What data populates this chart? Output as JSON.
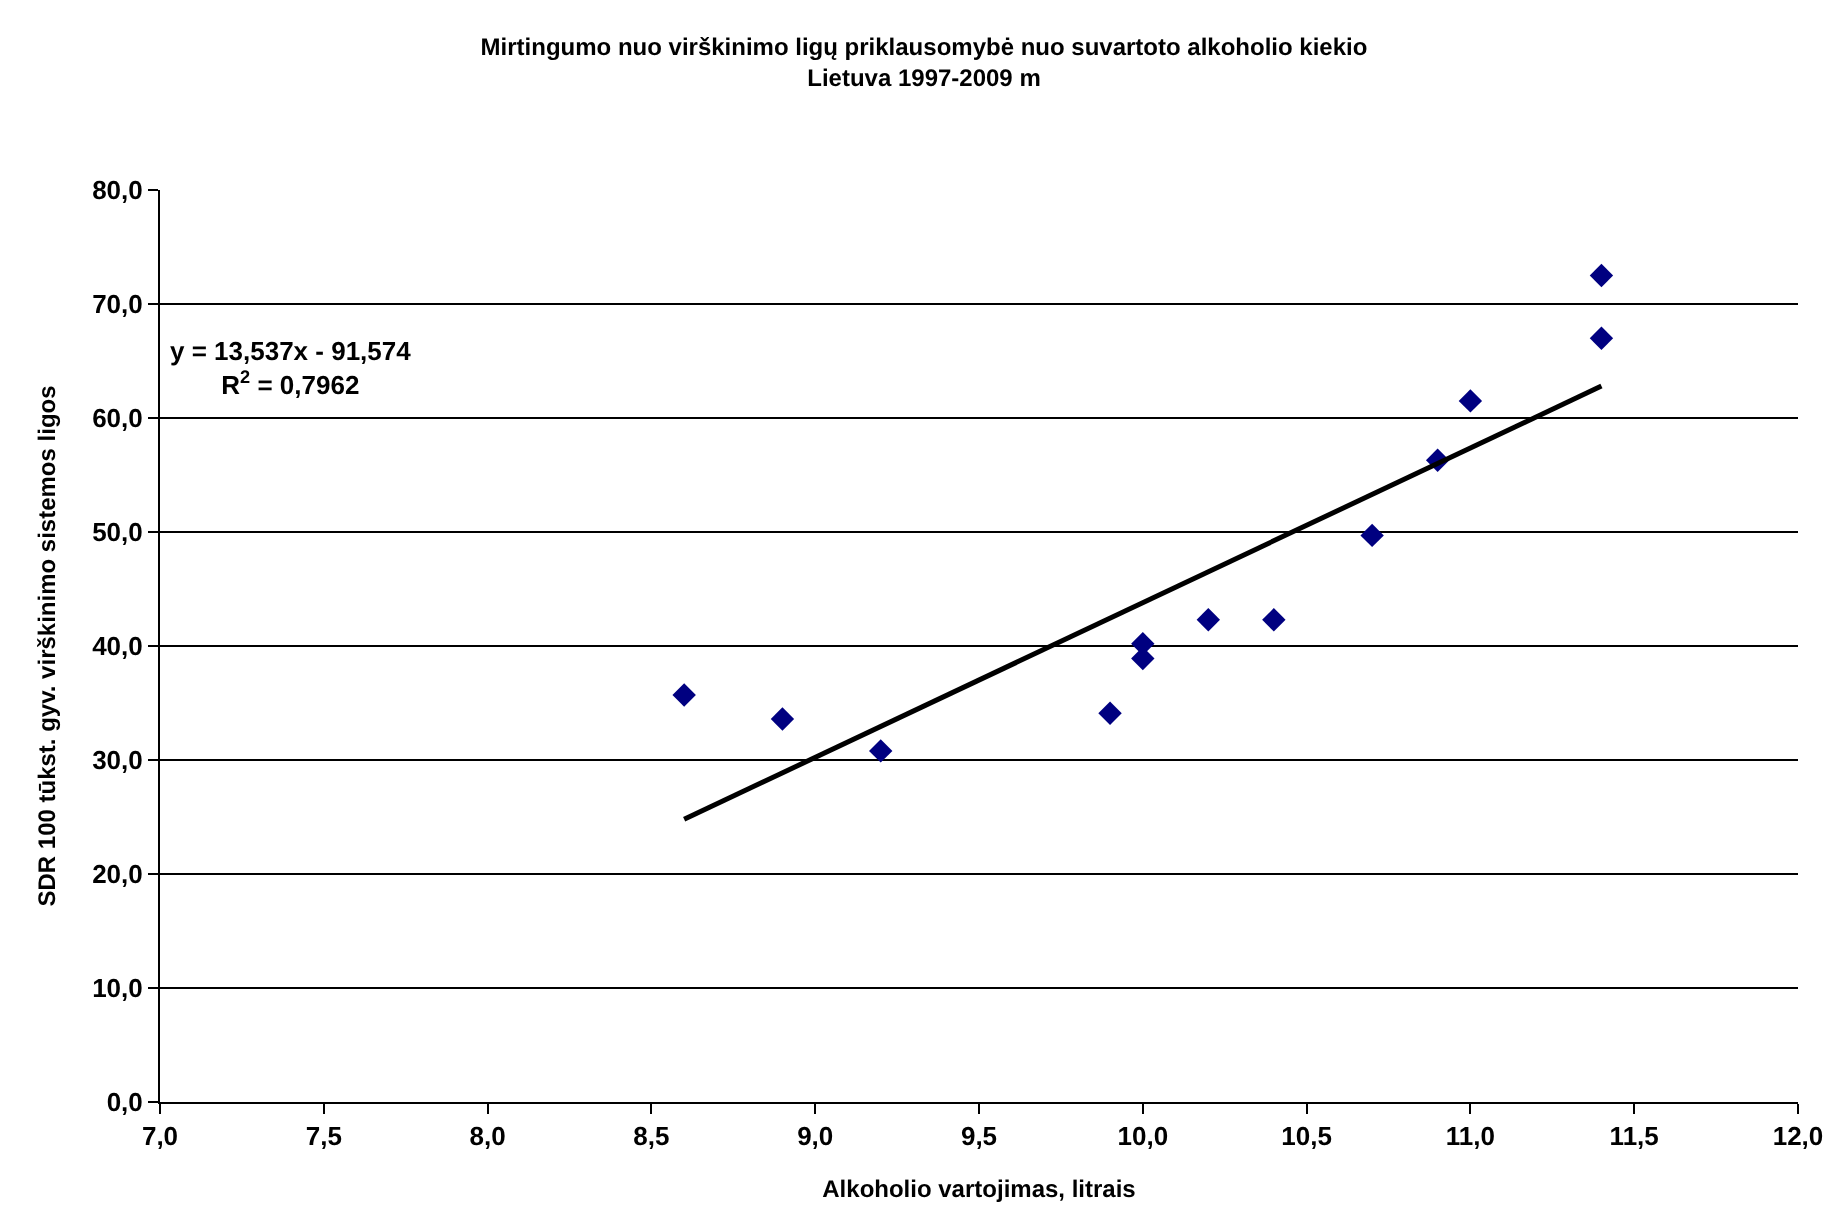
{
  "chart_data": {
    "type": "scatter",
    "title": "Mirtingumo nuo virškinimo ligų priklausomybė nuo suvartoto alkoholio kiekio\nLietuva 1997-2009 m",
    "xlabel": "Alkoholio vartojimas, litrais",
    "ylabel": "SDR 100 tūkst. gyv. virškinimo sistemos ligos",
    "annotations": [
      "y = 13,537x - 91,574\nR$^{2}$ = 0,7962"
    ],
    "series": [
      {
        "color": "#000080",
        "marker": "diamond",
        "x": [
          8.6,
          8.9,
          9.2,
          9.9,
          10.0,
          10.0,
          10.2,
          10.4,
          10.7,
          10.9,
          11.0,
          11.4,
          11.4
        ],
        "values": [
          35.7,
          33.6,
          30.8,
          34.1,
          40.2,
          38.9,
          42.3,
          42.3,
          49.7,
          56.3,
          61.5,
          72.5,
          67.0
        ]
      },
      {
        "type": "line",
        "color": "#000000",
        "marker": "none",
        "line_style": "solid",
        "x": [
          8.6,
          11.4
        ],
        "values": [
          24.8,
          62.8
        ]
      }
    ],
    "xlim": [
      7.0,
      12.0
    ],
    "xticks": [
      {
        "value": 7.0,
        "label": "7,0"
      },
      {
        "value": 7.5,
        "label": "7,5"
      },
      {
        "value": 8.0,
        "label": "8,0"
      },
      {
        "value": 8.5,
        "label": "8,5"
      },
      {
        "value": 9.0,
        "label": "9,0"
      },
      {
        "value": 9.5,
        "label": "9,5"
      },
      {
        "value": 10.0,
        "label": "10,0"
      },
      {
        "value": 10.5,
        "label": "10,5"
      },
      {
        "value": 11.0,
        "label": "11,0"
      },
      {
        "value": 11.5,
        "label": "11,5"
      },
      {
        "value": 12.0,
        "label": "12,0"
      }
    ],
    "ylim": [
      0,
      80
    ],
    "yticks": [
      {
        "value": 0,
        "label": "0,0"
      },
      {
        "value": 10,
        "label": "10,0"
      },
      {
        "value": 20,
        "label": "20,0"
      },
      {
        "value": 30,
        "label": "30,0"
      },
      {
        "value": 40,
        "label": "40,0"
      },
      {
        "value": 50,
        "label": "50,0"
      },
      {
        "value": 60,
        "label": "60,0"
      },
      {
        "value": 70,
        "label": "70,0"
      },
      {
        "value": 80,
        "label": "80,0"
      }
    ],
    "grid": "y"
  }
}
